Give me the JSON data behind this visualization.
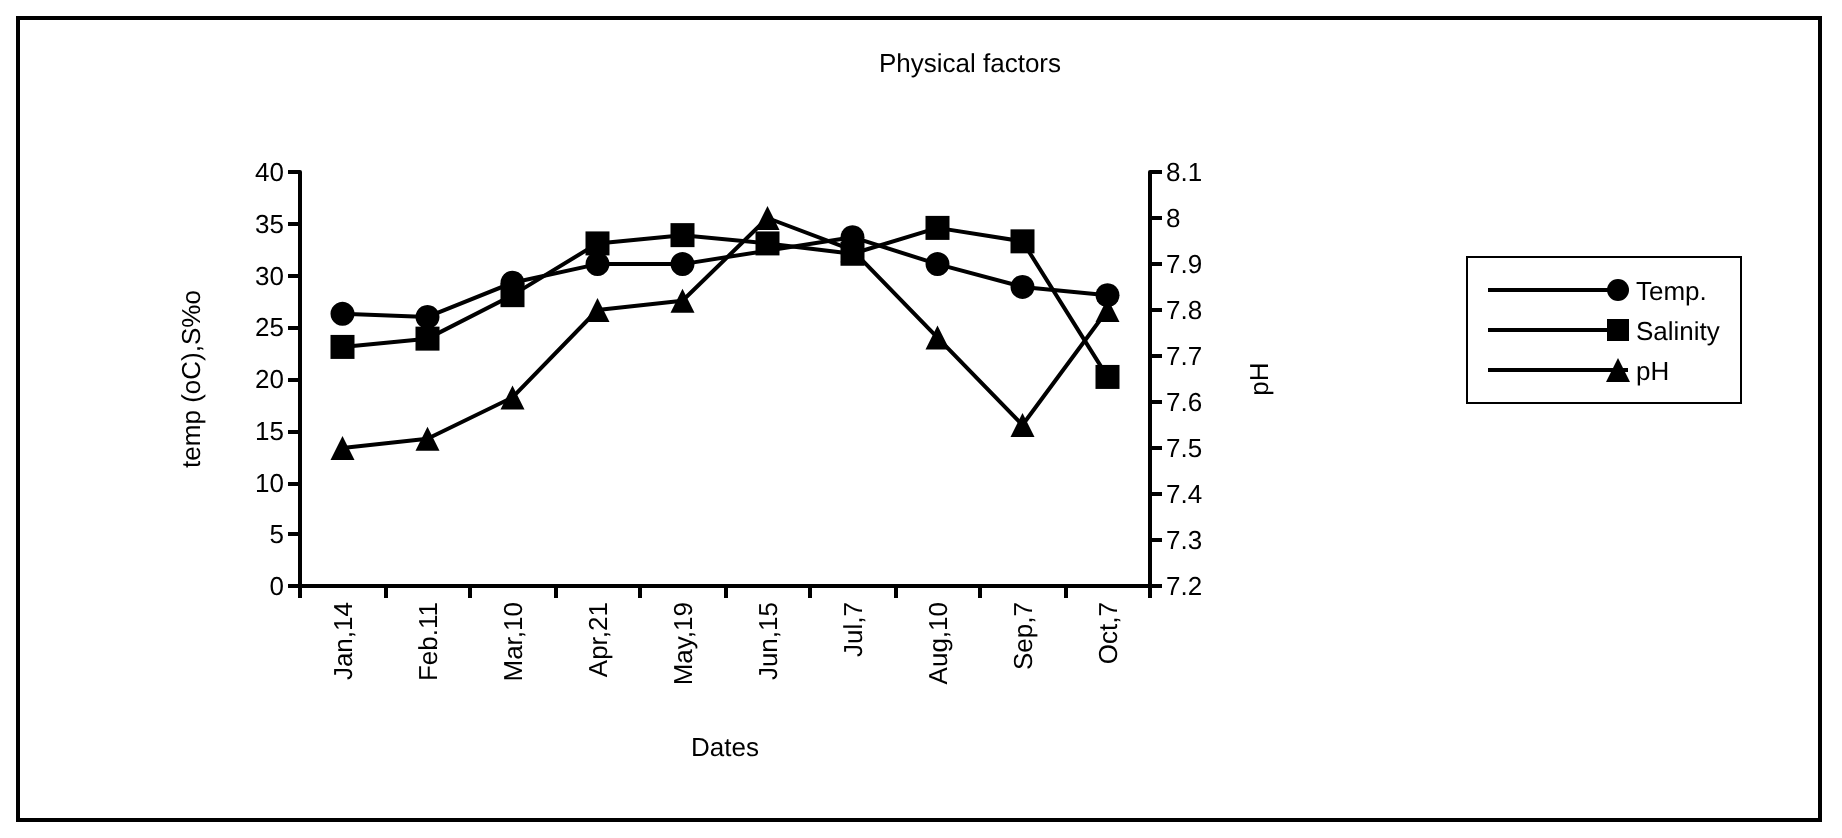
{
  "chart_data": {
    "type": "line",
    "title": "Physical factors",
    "xlabel": "Dates",
    "ylabel": "temp (oC),S%o",
    "y2label": "pH",
    "categories": [
      "Jan,14",
      "Feb.11",
      "Mar,10",
      "Apr,21",
      "May,19",
      "Jun,15",
      "Jul,7",
      "Aug,10",
      "Sep,7",
      "Oct,7"
    ],
    "series": [
      {
        "name": "Temp.",
        "color": "#000000",
        "marker": "circle",
        "values": [
          26.3,
          26,
          29.3,
          31.1,
          31.1,
          null,
          33.7,
          31.1,
          28.9,
          28.1
        ]
      },
      {
        "name": "Salinity",
        "color": "#000000",
        "marker": "square",
        "values": [
          23.1,
          23.9,
          28.1,
          33.1,
          33.9,
          33.1,
          32.1,
          34.6,
          33.3,
          20.2
        ]
      },
      {
        "name": "pH",
        "color": "#000000",
        "marker": "triangle",
        "axis": "y2",
        "values": [
          7.5,
          7.52,
          7.61,
          7.8,
          7.82,
          8.0,
          7.93,
          7.74,
          7.55,
          7.8
        ]
      }
    ],
    "ylim": [
      0,
      40
    ],
    "yticks": [
      0,
      5,
      10,
      15,
      20,
      25,
      30,
      35,
      40
    ],
    "y2lim": [
      7.2,
      8.1
    ],
    "y2ticks": [
      7.2,
      7.3,
      7.4,
      7.5,
      7.6,
      7.7,
      7.8,
      7.9,
      8,
      8.1
    ],
    "grid": false,
    "legend": "right",
    "line_style": "solid"
  }
}
